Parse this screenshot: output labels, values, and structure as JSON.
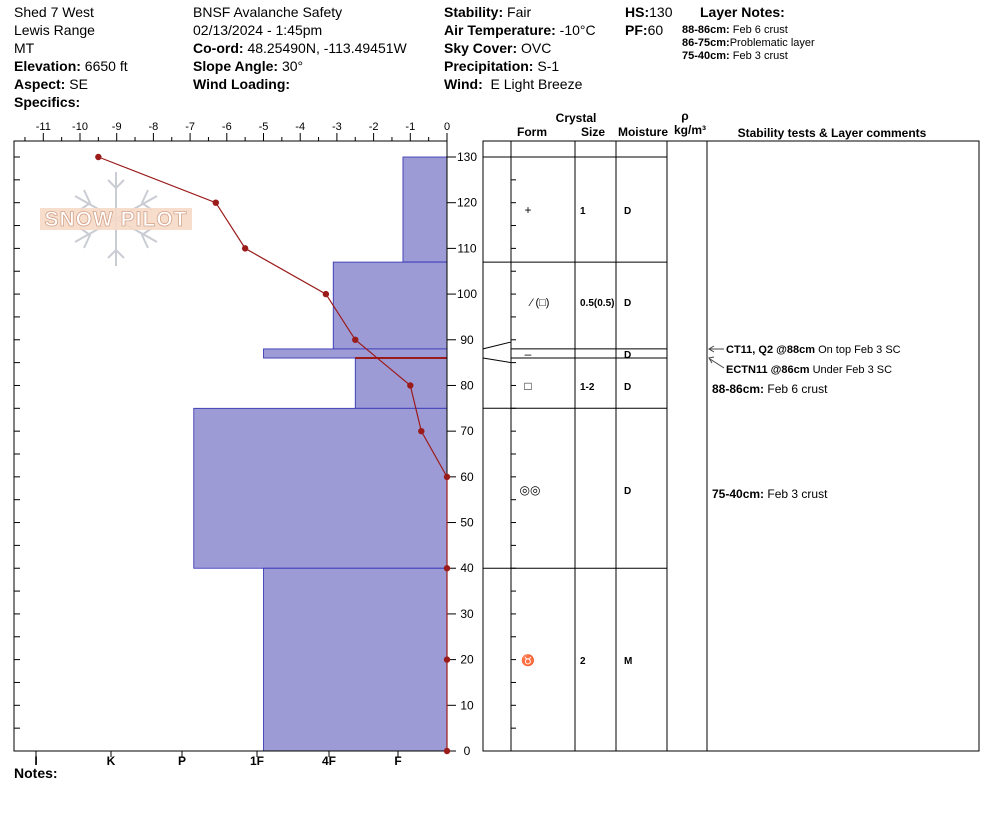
{
  "header": {
    "col1": {
      "line1": "Shed 7 West",
      "line2": "Lewis Range",
      "line3": "MT",
      "elevation_label": "Elevation:",
      "elevation": "6650 ft",
      "aspect_label": "Aspect:",
      "aspect": "SE",
      "specifics_label": "Specifics:"
    },
    "col2": {
      "line1": "BNSF Avalanche Safety",
      "line2": "02/13/2024 - 1:45pm",
      "coord_label": "Co-ord:",
      "coord": "48.25490N, -113.49451W",
      "slope_label": "Slope Angle:",
      "slope": "30°",
      "wind_loading_label": "Wind Loading:"
    },
    "col3": {
      "stability_label": "Stability:",
      "stability": "Fair",
      "air_temp_label": "Air Temperature:",
      "air_temp": "-10°C",
      "sky_label": "Sky Cover:",
      "sky": "OVC",
      "precip_label": "Precipitation:",
      "precip": "S-1",
      "wind_label": "Wind:",
      "wind": "E Light Breeze"
    },
    "col4": {
      "hs_label": "HS:",
      "hs": "130",
      "pf_label": "PF:",
      "pf": "60"
    },
    "layer_notes": {
      "title": "Layer Notes:",
      "items": [
        {
          "range": "88-86cm:",
          "note": "Feb 6 crust"
        },
        {
          "range": "86-75cm:",
          "note": "Problematic layer"
        },
        {
          "range": "75-40cm:",
          "note": "Feb 3 crust"
        }
      ]
    }
  },
  "watermark": "SNOW PILOT",
  "notes_label": "Notes:",
  "table": {
    "crystal_label": "Crystal",
    "rho_label": "ρ",
    "kgm3_label": "kg/m³",
    "form_label": "Form",
    "size_label": "Size",
    "moisture_label": "Moisture",
    "comments_label": "Stability tests & Layer comments",
    "rows": [
      {
        "form": "+",
        "size": "1",
        "moisture": "D"
      },
      {
        "form": "⁄ (□)",
        "size": "0.5(0.5)",
        "moisture": "D"
      },
      {
        "form": "–",
        "size": "",
        "moisture": "D"
      },
      {
        "form": "□",
        "size": "1-2",
        "moisture": "D"
      },
      {
        "form": "◎◎",
        "size": "",
        "moisture": "D"
      },
      {
        "form": "♉",
        "size": "2",
        "moisture": "M"
      }
    ],
    "tests": [
      {
        "code": "CT11, Q2 @88cm",
        "text": "On top Feb 3 SC"
      },
      {
        "code": "ECTN11 @86cm",
        "text": "Under Feb 3 SC"
      }
    ],
    "comments": [
      {
        "range": "88-86cm:",
        "text": "Feb 6 crust"
      },
      {
        "range": "75-40cm:",
        "text": "Feb 3 crust"
      }
    ]
  },
  "colors": {
    "hardness_fill": "#9d9bd6",
    "hardness_stroke": "#2b2bb0",
    "temp_line": "#9b1b1b"
  },
  "chart_data": {
    "type": "area",
    "x_temp_ticks": [
      -11,
      -10,
      -9,
      -8,
      -7,
      -6,
      -5,
      -4,
      -3,
      -2,
      -1,
      0
    ],
    "x_temp_tick_labels": [
      "-11",
      "-10",
      "-9",
      "-8",
      "-7",
      "-6",
      "-5",
      "-4",
      "-3",
      "-2",
      "-1",
      "0"
    ],
    "hardness_tick_labels": [
      "I",
      "K",
      "P",
      "1F",
      "4F",
      "F"
    ],
    "y_ticks": [
      0,
      10,
      20,
      30,
      40,
      50,
      60,
      70,
      80,
      90,
      100,
      110,
      120,
      130
    ],
    "ylim": [
      0,
      130
    ],
    "xlim": [
      -11.5,
      0
    ],
    "hardness_layers": [
      {
        "top": 130,
        "bottom": 107,
        "temp_extent": -1.2
      },
      {
        "top": 107,
        "bottom": 88,
        "temp_extent": -3.1
      },
      {
        "top": 88,
        "bottom": 86,
        "temp_extent": -5.0
      },
      {
        "top": 86,
        "bottom": 75,
        "temp_extent": -2.5
      },
      {
        "top": 75,
        "bottom": 40,
        "temp_extent": -6.9
      },
      {
        "top": 40,
        "bottom": 0,
        "temp_extent": -5.0
      }
    ],
    "temperature_profile": [
      {
        "depth": 130,
        "temp": -9.5
      },
      {
        "depth": 120,
        "temp": -6.3
      },
      {
        "depth": 110,
        "temp": -5.5
      },
      {
        "depth": 100,
        "temp": -3.3
      },
      {
        "depth": 90,
        "temp": -2.5
      },
      {
        "depth": 80,
        "temp": -1.0
      },
      {
        "depth": 70,
        "temp": -0.7
      },
      {
        "depth": 60,
        "temp": 0
      },
      {
        "depth": 40,
        "temp": 0
      },
      {
        "depth": 20,
        "temp": 0
      },
      {
        "depth": 0,
        "temp": 0
      }
    ]
  }
}
